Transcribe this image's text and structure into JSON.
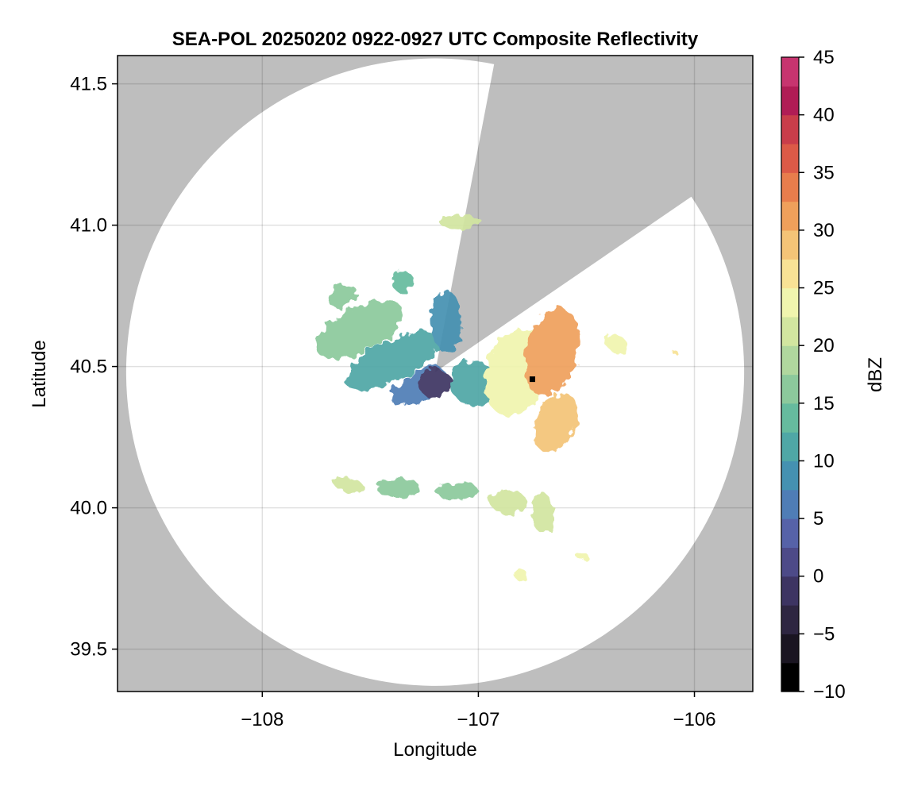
{
  "chart_data": {
    "type": "heatmap",
    "title": "SEA-POL 20250202 0922-0927 UTC Composite Reflectivity",
    "xlabel": "Longitude",
    "ylabel": "Latitude",
    "xlim": [
      -108.67,
      -105.73
    ],
    "ylim": [
      39.35,
      41.6
    ],
    "x_ticks": [
      -108,
      -107,
      -106
    ],
    "x_tick_labels": [
      "−108",
      "−107",
      "−106"
    ],
    "y_ticks": [
      39.5,
      40.0,
      40.5,
      41.0,
      41.5
    ],
    "y_tick_labels": [
      "39.5",
      "40.0",
      "40.5",
      "41.0",
      "41.5"
    ],
    "grid": true,
    "background_color": "#bebebe",
    "radar": {
      "center_lon": -107.2,
      "center_lat": 40.48,
      "range_edge_lat_south": 39.37,
      "range_edge_lon_east": -105.77,
      "blocked_sector_bearings_deg": [
        11,
        56
      ]
    },
    "site_marker": {
      "lon": -106.75,
      "lat": 40.455,
      "color": "#000000"
    },
    "colorbar": {
      "label": "dBZ",
      "min": -10,
      "max": 45,
      "step": 2.5,
      "ticks": [
        -10,
        -5,
        0,
        5,
        10,
        15,
        20,
        25,
        30,
        35,
        40,
        45
      ],
      "tick_labels": [
        "−10",
        "−5",
        "0",
        "5",
        "10",
        "15",
        "20",
        "25",
        "30",
        "35",
        "40",
        "45"
      ],
      "colors": [
        "#000000",
        "#1a1521",
        "#2e2641",
        "#3d3462",
        "#4d4a88",
        "#5662a8",
        "#4f7db6",
        "#4591b1",
        "#4fa7a6",
        "#66bb9e",
        "#8cc99c",
        "#b0d79e",
        "#d2e6a0",
        "#f0f5ae",
        "#f8e295",
        "#f4c477",
        "#efa05b",
        "#e87d4c",
        "#dc5a47",
        "#c93d4a",
        "#b01c55",
        "#c7346f",
        "#dc5d95",
        "#e88cbb",
        "#b889c1",
        "#8d5ba6",
        "#6e2f89",
        "#4a0c5e"
      ]
    },
    "echo_regions": [
      {
        "lon": -107.55,
        "lat": 40.63,
        "rx": 0.22,
        "ry": 0.08,
        "rot": 28,
        "dbz": 16
      },
      {
        "lon": -107.4,
        "lat": 40.52,
        "rx": 0.24,
        "ry": 0.07,
        "rot": 26,
        "dbz": 11
      },
      {
        "lon": -107.28,
        "lat": 40.43,
        "rx": 0.14,
        "ry": 0.05,
        "rot": 30,
        "dbz": 5
      },
      {
        "lon": -107.2,
        "lat": 40.44,
        "rx": 0.08,
        "ry": 0.05,
        "rot": 0,
        "dbz": -2
      },
      {
        "lon": -107.02,
        "lat": 40.44,
        "rx": 0.11,
        "ry": 0.08,
        "rot": -30,
        "dbz": 10
      },
      {
        "lon": -107.15,
        "lat": 40.66,
        "rx": 0.07,
        "ry": 0.11,
        "rot": 0,
        "dbz": 8
      },
      {
        "lon": -106.82,
        "lat": 40.48,
        "rx": 0.14,
        "ry": 0.16,
        "rot": -20,
        "dbz": 24
      },
      {
        "lon": -106.66,
        "lat": 40.55,
        "rx": 0.12,
        "ry": 0.16,
        "rot": -15,
        "dbz": 30
      },
      {
        "lon": -106.64,
        "lat": 40.3,
        "rx": 0.09,
        "ry": 0.11,
        "rot": -25,
        "dbz": 28
      },
      {
        "lon": -106.36,
        "lat": 40.58,
        "rx": 0.06,
        "ry": 0.03,
        "rot": -30,
        "dbz": 24
      },
      {
        "lon": -107.08,
        "lat": 41.01,
        "rx": 0.1,
        "ry": 0.025,
        "rot": 0,
        "dbz": 20
      },
      {
        "lon": -107.63,
        "lat": 40.75,
        "rx": 0.07,
        "ry": 0.035,
        "rot": 30,
        "dbz": 17
      },
      {
        "lon": -107.35,
        "lat": 40.8,
        "rx": 0.05,
        "ry": 0.04,
        "rot": 0,
        "dbz": 13
      },
      {
        "lon": -107.6,
        "lat": 40.08,
        "rx": 0.07,
        "ry": 0.025,
        "rot": -10,
        "dbz": 21
      },
      {
        "lon": -107.37,
        "lat": 40.07,
        "rx": 0.1,
        "ry": 0.035,
        "rot": 0,
        "dbz": 15
      },
      {
        "lon": -107.1,
        "lat": 40.06,
        "rx": 0.1,
        "ry": 0.03,
        "rot": 0,
        "dbz": 16
      },
      {
        "lon": -106.86,
        "lat": 40.02,
        "rx": 0.08,
        "ry": 0.045,
        "rot": 0,
        "dbz": 21
      },
      {
        "lon": -106.7,
        "lat": 39.98,
        "rx": 0.05,
        "ry": 0.07,
        "rot": 0,
        "dbz": 21
      },
      {
        "lon": -106.52,
        "lat": 39.83,
        "rx": 0.025,
        "ry": 0.015,
        "rot": 0,
        "dbz": 24
      },
      {
        "lon": -106.8,
        "lat": 39.76,
        "rx": 0.03,
        "ry": 0.02,
        "rot": 0,
        "dbz": 24
      },
      {
        "lon": -106.09,
        "lat": 40.55,
        "rx": 0.012,
        "ry": 0.008,
        "rot": 0,
        "dbz": 25
      }
    ]
  }
}
